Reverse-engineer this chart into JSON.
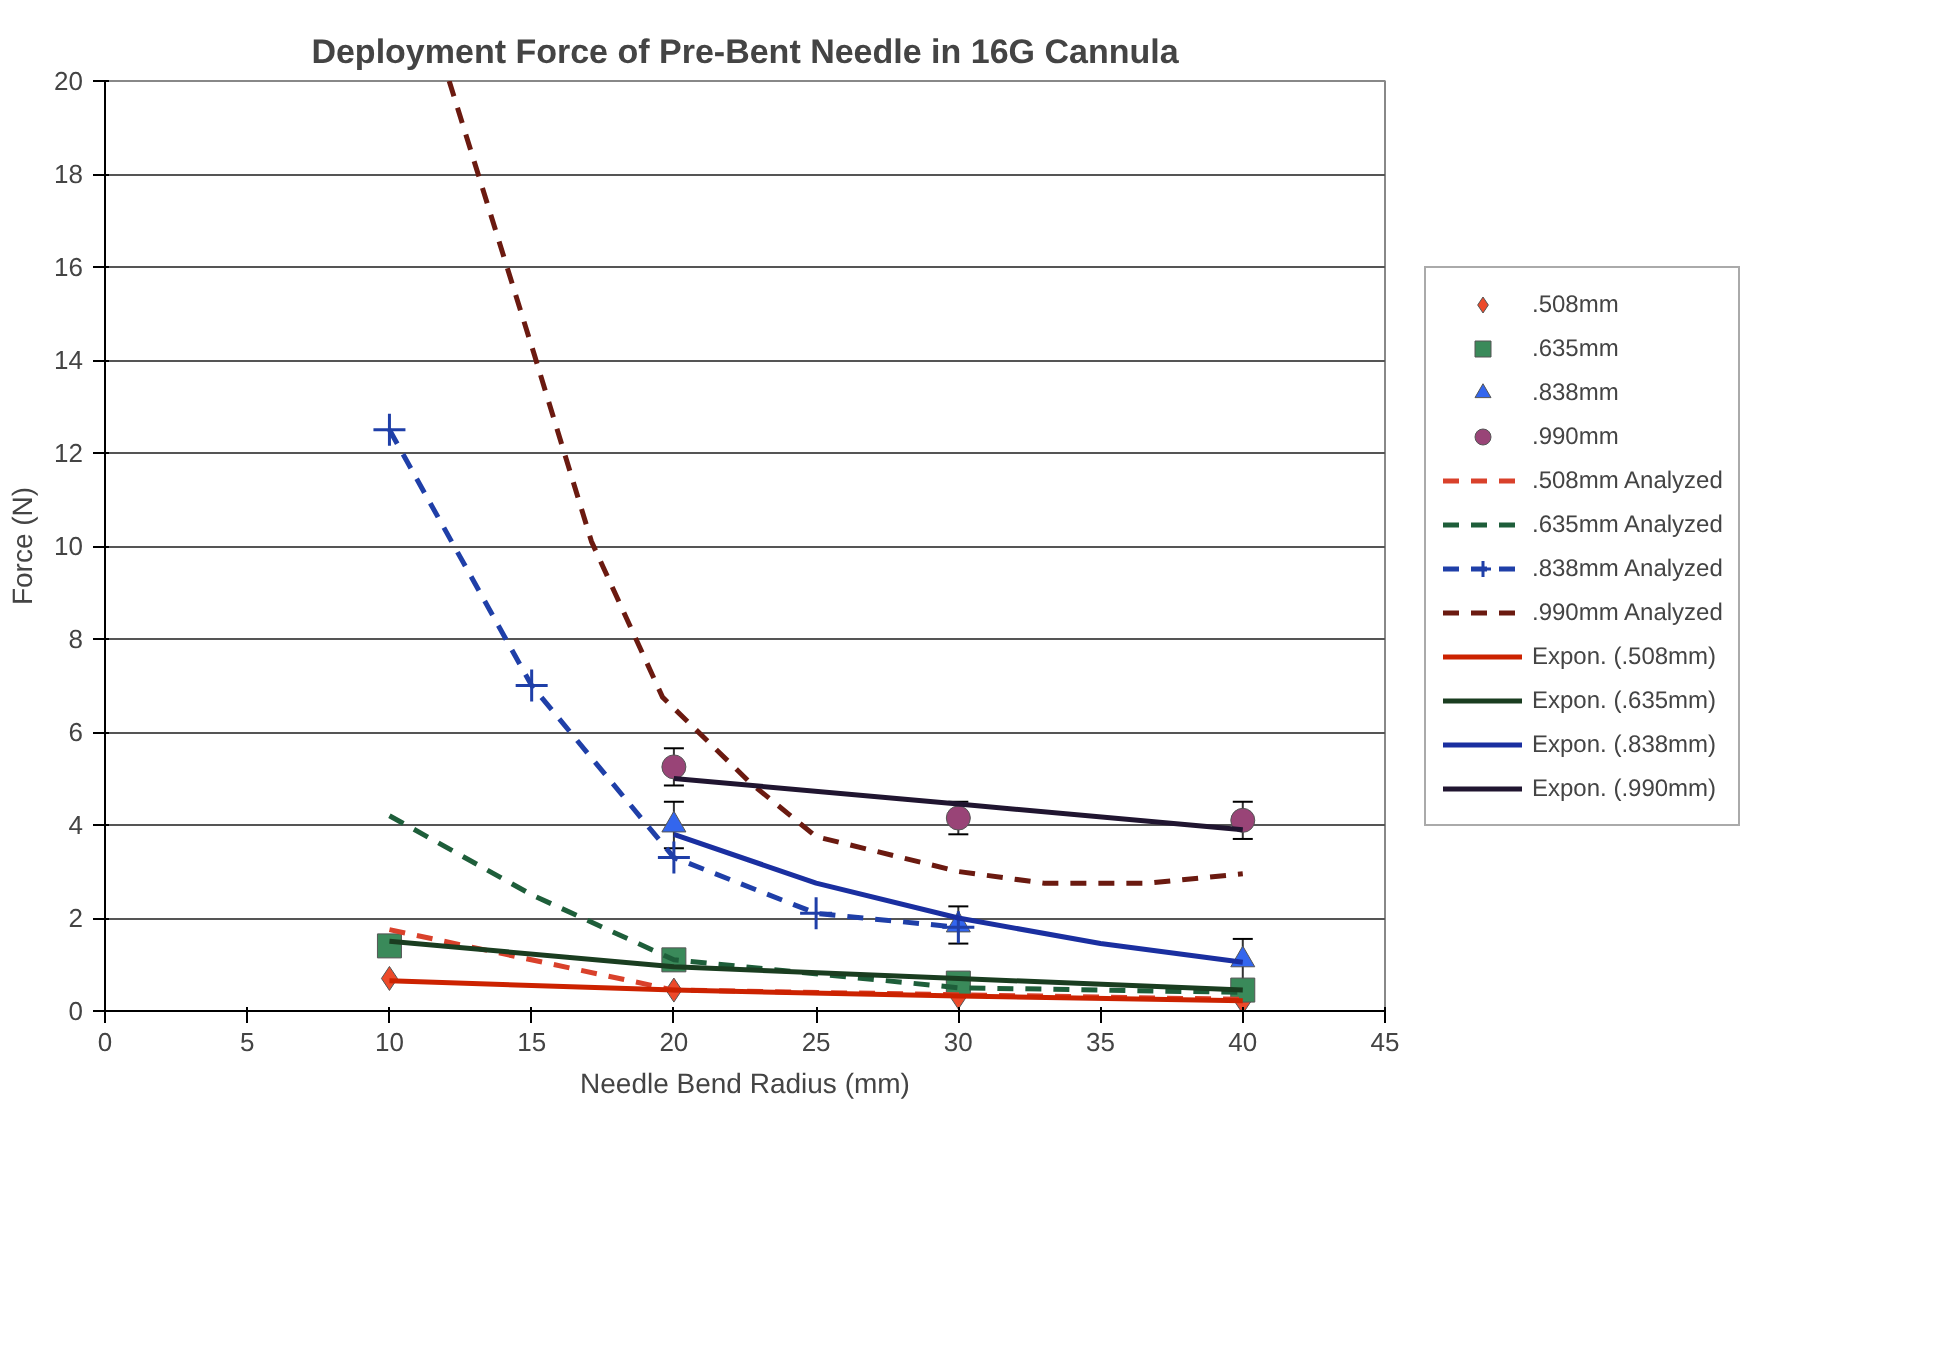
{
  "chart_data": {
    "type": "scatter",
    "title": "Deployment Force of Pre-Bent Needle in 16G Cannula",
    "xlabel": "Needle Bend Radius (mm)",
    "ylabel": "Force (N)",
    "xlim": [
      0,
      45
    ],
    "xticks": [
      0,
      5,
      10,
      15,
      20,
      25,
      30,
      35,
      40,
      45
    ],
    "ylim": [
      0,
      20
    ],
    "yticks": [
      0,
      2,
      4,
      6,
      8,
      10,
      12,
      14,
      16,
      18,
      20
    ],
    "grid": "y",
    "legend": "right",
    "series": [
      {
        "name": ".508mm",
        "marker": "diamond",
        "color": "#ec4a2a",
        "x": [
          10,
          20,
          30,
          40
        ],
        "values": [
          0.7,
          0.45,
          0.3,
          0.2
        ]
      },
      {
        "name": ".635mm",
        "marker": "square",
        "color": "#3a8a5a",
        "x": [
          10,
          20,
          30,
          40
        ],
        "values": [
          1.4,
          1.1,
          0.6,
          0.45
        ]
      },
      {
        "name": ".838mm",
        "marker": "triangle",
        "color": "#3366ee",
        "x": [
          20,
          30,
          40
        ],
        "values": [
          4.0,
          1.85,
          1.1
        ],
        "errors": [
          0.5,
          0.4,
          0.45
        ]
      },
      {
        "name": ".990mm",
        "marker": "circle",
        "color": "#994477",
        "x": [
          20,
          30,
          40
        ],
        "values": [
          5.25,
          4.15,
          4.1
        ],
        "errors": [
          0.4,
          0.35,
          0.4
        ]
      },
      {
        "name": ".508mm Analyzed",
        "type": "line",
        "line_style": "dashed",
        "marker": "none",
        "color": "#d9412b",
        "x": [
          10,
          20,
          30,
          40
        ],
        "values": [
          1.75,
          0.45,
          0.35,
          0.25
        ]
      },
      {
        "name": ".635mm Analyzed",
        "type": "line",
        "line_style": "dashed",
        "marker": "none",
        "color": "#1e5e3a",
        "x": [
          10,
          15,
          20,
          30,
          40
        ],
        "values": [
          4.2,
          2.5,
          1.1,
          0.5,
          0.4
        ]
      },
      {
        "name": ".838mm Analyzed",
        "type": "line",
        "line_style": "dashed",
        "marker": "cross",
        "color": "#1f3fa8",
        "x": [
          10,
          15,
          20,
          25,
          30
        ],
        "values": [
          12.5,
          7.0,
          3.3,
          2.1,
          1.8
        ]
      },
      {
        "name": ".990mm Analyzed",
        "type": "line",
        "line_style": "dashed",
        "marker": "none",
        "color": "#6b1a10",
        "x": [
          12.1,
          15.1,
          17.1,
          19.6,
          22.7,
          25,
          30,
          33,
          36.7,
          40
        ],
        "values": [
          20,
          14.1,
          10.1,
          6.75,
          4.9,
          3.75,
          3.0,
          2.75,
          2.75,
          2.95
        ]
      },
      {
        "name": "Expon. (.508mm)",
        "type": "line",
        "line_style": "solid",
        "marker": "none",
        "color": "#cc2200",
        "x": [
          10,
          20,
          30,
          40
        ],
        "values": [
          0.65,
          0.45,
          0.32,
          0.22
        ]
      },
      {
        "name": "Expon. (.635mm)",
        "type": "line",
        "line_style": "solid",
        "marker": "none",
        "color": "#1a3d20",
        "x": [
          10,
          20,
          30,
          40
        ],
        "values": [
          1.5,
          0.95,
          0.7,
          0.45
        ]
      },
      {
        "name": "Expon. (.838mm)",
        "type": "line",
        "line_style": "solid",
        "marker": "none",
        "color": "#1a2fa0",
        "x": [
          20,
          25,
          30,
          35,
          40
        ],
        "values": [
          3.8,
          2.75,
          2.0,
          1.45,
          1.05
        ]
      },
      {
        "name": "Expon. (.990mm)",
        "type": "line",
        "line_style": "solid",
        "marker": "none",
        "color": "#201530",
        "x": [
          20,
          30,
          40
        ],
        "values": [
          5.0,
          4.45,
          3.9
        ]
      }
    ]
  }
}
